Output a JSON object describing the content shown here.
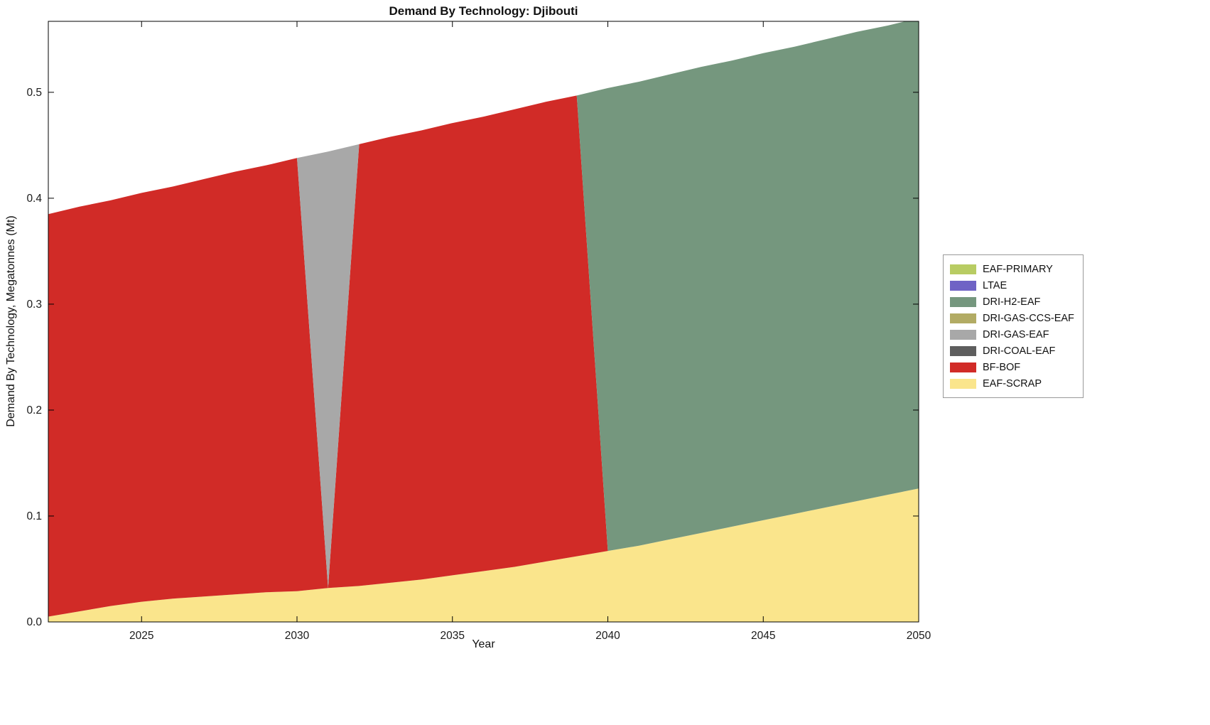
{
  "chart_data": {
    "type": "area",
    "title": "Demand By Technology: Djibouti",
    "xlabel": "Year",
    "ylabel": "Demand By Technology, Megatonnes (Mt)",
    "x": [
      2022,
      2023,
      2024,
      2025,
      2026,
      2027,
      2028,
      2029,
      2030,
      2031,
      2032,
      2033,
      2034,
      2035,
      2036,
      2037,
      2038,
      2039,
      2040,
      2041,
      2042,
      2043,
      2044,
      2045,
      2046,
      2047,
      2048,
      2049,
      2050
    ],
    "xlim": [
      2022,
      2050
    ],
    "ylim": [
      0,
      0.567
    ],
    "xticks": [
      2025,
      2030,
      2035,
      2040,
      2045,
      2050
    ],
    "yticks": [
      0,
      0.1,
      0.2,
      0.3,
      0.4,
      0.5
    ],
    "ytick_labels": [
      "0.0",
      "0.1",
      "0.2",
      "0.3",
      "0.4",
      "0.5"
    ],
    "grid": false,
    "legend_position": "right",
    "stack_order": "bottom-to-top; legend shows reverse order",
    "series": [
      {
        "name": "EAF-SCRAP",
        "color": "#FAE58C",
        "values": [
          0.005,
          0.01,
          0.015,
          0.019,
          0.022,
          0.024,
          0.026,
          0.028,
          0.029,
          0.032,
          0.034,
          0.037,
          0.04,
          0.044,
          0.048,
          0.052,
          0.057,
          0.062,
          0.067,
          0.072,
          0.078,
          0.084,
          0.09,
          0.096,
          0.102,
          0.108,
          0.114,
          0.12,
          0.126
        ]
      },
      {
        "name": "BF-BOF",
        "color": "#D12B27",
        "values": [
          0.38,
          0.382,
          0.383,
          0.386,
          0.389,
          0.394,
          0.399,
          0.403,
          0.409,
          0,
          0.417,
          0.421,
          0.424,
          0.427,
          0.429,
          0.432,
          0.434,
          0.435,
          0,
          0,
          0,
          0,
          0,
          0,
          0,
          0,
          0,
          0,
          0
        ]
      },
      {
        "name": "DRI-COAL-EAF",
        "color": "#5E5E5E",
        "values": [
          0,
          0,
          0,
          0,
          0,
          0,
          0,
          0,
          0,
          0,
          0,
          0,
          0,
          0,
          0,
          0,
          0,
          0,
          0,
          0,
          0,
          0,
          0,
          0,
          0,
          0,
          0,
          0,
          0
        ]
      },
      {
        "name": "DRI-GAS-EAF",
        "color": "#A8A8A8",
        "values": [
          0,
          0,
          0,
          0,
          0,
          0,
          0,
          0,
          0,
          0.412,
          0,
          0,
          0,
          0,
          0,
          0,
          0,
          0,
          0,
          0,
          0,
          0,
          0,
          0,
          0,
          0,
          0,
          0,
          0
        ]
      },
      {
        "name": "DRI-GAS-CCS-EAF",
        "color": "#B2AB64",
        "values": [
          0,
          0,
          0,
          0,
          0,
          0,
          0,
          0,
          0,
          0,
          0,
          0,
          0,
          0,
          0,
          0,
          0,
          0,
          0,
          0,
          0,
          0,
          0,
          0,
          0,
          0,
          0,
          0,
          0
        ]
      },
      {
        "name": "DRI-H2-EAF",
        "color": "#75977E",
        "values": [
          0,
          0,
          0,
          0,
          0,
          0,
          0,
          0,
          0,
          0,
          0,
          0,
          0,
          0,
          0,
          0,
          0,
          0,
          0.437,
          0.438,
          0.439,
          0.44,
          0.44,
          0.441,
          0.441,
          0.442,
          0.443,
          0.443,
          0.444
        ]
      },
      {
        "name": "LTAE",
        "color": "#6F63C5",
        "values": [
          0,
          0,
          0,
          0,
          0,
          0,
          0,
          0,
          0,
          0,
          0,
          0,
          0,
          0,
          0,
          0,
          0,
          0,
          0,
          0,
          0,
          0,
          0,
          0,
          0,
          0,
          0,
          0,
          0
        ]
      },
      {
        "name": "EAF-PRIMARY",
        "color": "#B8CC63",
        "values": [
          0,
          0,
          0,
          0,
          0,
          0,
          0,
          0,
          0,
          0,
          0,
          0,
          0,
          0,
          0,
          0,
          0,
          0,
          0,
          0,
          0,
          0,
          0,
          0,
          0,
          0,
          0,
          0,
          0
        ]
      }
    ]
  }
}
